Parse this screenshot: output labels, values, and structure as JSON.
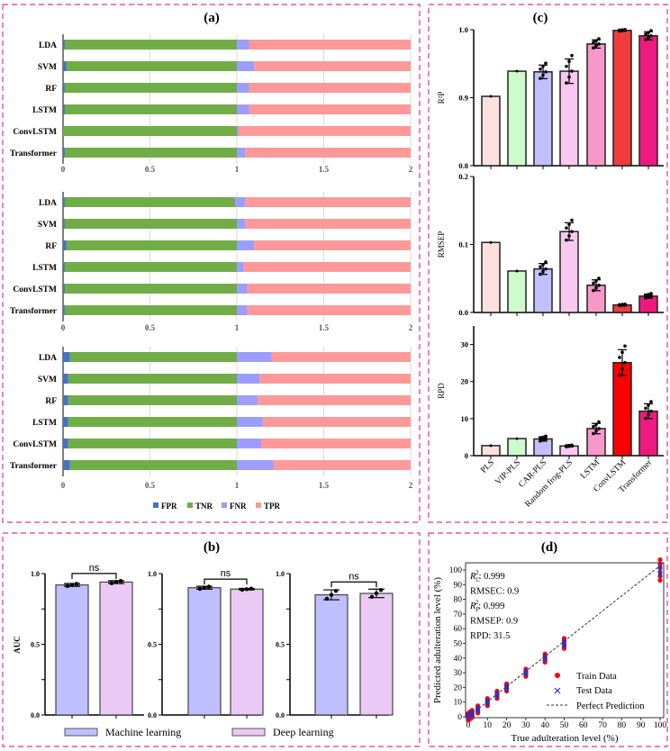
{
  "panels": {
    "a": "(a)",
    "b": "(b)",
    "c": "(c)",
    "d": "(d)"
  },
  "colors": {
    "border": "#e8338a",
    "FPR": "#4472c4",
    "TNR": "#70ad47",
    "FNR": "#9d9dff",
    "TPR": "#ff9999"
  },
  "chart_data": [
    {
      "id": "a",
      "type": "bar",
      "orientation": "horizontal",
      "stacked": true,
      "categories": [
        "LDA",
        "SVM",
        "RF",
        "LSTM",
        "ConvLSTM",
        "Transformer"
      ],
      "xlim": [
        0,
        2
      ],
      "xticks": [
        "0",
        "0.5",
        "1",
        "1.5",
        "2"
      ],
      "grid": true,
      "legend": "bottom",
      "series_names": [
        "FPR",
        "TNR",
        "FNR",
        "TPR"
      ],
      "subplots": [
        {
          "series": [
            {
              "name": "FPR",
              "values": [
                0.01,
                0.02,
                0.01,
                0.01,
                0.0,
                0.01
              ]
            },
            {
              "name": "TNR",
              "values": [
                0.99,
                0.98,
                0.99,
                0.99,
                1.0,
                0.99
              ]
            },
            {
              "name": "FNR",
              "values": [
                0.07,
                0.1,
                0.07,
                0.07,
                0.01,
                0.05
              ]
            },
            {
              "name": "TPR",
              "values": [
                0.93,
                0.9,
                0.93,
                0.93,
                0.99,
                0.95
              ]
            }
          ]
        },
        {
          "series": [
            {
              "name": "FPR",
              "values": [
                0.01,
                0.01,
                0.02,
                0.01,
                0.01,
                0.01
              ]
            },
            {
              "name": "TNR",
              "values": [
                0.98,
                0.99,
                0.98,
                0.99,
                0.99,
                0.99
              ]
            },
            {
              "name": "FNR",
              "values": [
                0.06,
                0.05,
                0.1,
                0.04,
                0.06,
                0.06
              ]
            },
            {
              "name": "TPR",
              "values": [
                0.95,
                0.95,
                0.9,
                0.96,
                0.94,
                0.94
              ]
            }
          ]
        },
        {
          "series": [
            {
              "name": "FPR",
              "values": [
                0.04,
                0.03,
                0.03,
                0.03,
                0.03,
                0.04
              ]
            },
            {
              "name": "TNR",
              "values": [
                0.96,
                0.97,
                0.97,
                0.97,
                0.97,
                0.96
              ]
            },
            {
              "name": "FNR",
              "values": [
                0.2,
                0.13,
                0.12,
                0.15,
                0.14,
                0.21
              ]
            },
            {
              "name": "TPR",
              "values": [
                0.8,
                0.87,
                0.88,
                0.85,
                0.86,
                0.79
              ]
            }
          ]
        }
      ]
    },
    {
      "id": "b",
      "type": "bar",
      "ylabel": "AUC",
      "ylim": [
        0,
        1
      ],
      "yticks": [
        "0.0",
        "0.5",
        "1.0"
      ],
      "legend": "bottom",
      "series_names": [
        "Machine learning",
        "Deep learning"
      ],
      "series_colors": [
        "#bfbfff",
        "#ecc8f4"
      ],
      "annotation": "ns",
      "subplots": [
        {
          "values": [
            0.92,
            0.94
          ],
          "errors": [
            0.01,
            0.01
          ]
        },
        {
          "values": [
            0.9,
            0.89
          ],
          "errors": [
            0.01,
            0.005
          ]
        },
        {
          "values": [
            0.85,
            0.86
          ],
          "errors": [
            0.035,
            0.03
          ]
        }
      ]
    },
    {
      "id": "c",
      "type": "bar",
      "categories": [
        "PLS",
        "VIP-PLS",
        "CAR-PLS",
        "Random frog-PLS",
        "LSTM",
        "ConvLSTM",
        "Transformer"
      ],
      "subplots": [
        {
          "ylabel": "R²P",
          "ylim": [
            0.8,
            1.0
          ],
          "yticks": [
            "0.8",
            "0.9",
            "1.0"
          ],
          "values": [
            0.902,
            0.939,
            0.938,
            0.939,
            0.979,
            0.999,
            0.991
          ],
          "errors": [
            0,
            0,
            0.01,
            0.018,
            0.006,
            0.001,
            0.006
          ],
          "colors": [
            "#fde0e0",
            "#ccfccc",
            "#c0c0ff",
            "#f8c8f0",
            "#f799c8",
            "#f23c3c",
            "#ef1a80"
          ]
        },
        {
          "ylabel": "RMSEP",
          "ylim": [
            0,
            0.2
          ],
          "yticks": [
            "0.0",
            "0.1",
            "0.2"
          ],
          "values": [
            0.103,
            0.061,
            0.064,
            0.119,
            0.04,
            0.011,
            0.024
          ],
          "errors": [
            0,
            0,
            0.008,
            0.013,
            0.008,
            0.001,
            0.003
          ],
          "colors": [
            "#fde0e0",
            "#ccfccc",
            "#c0c0ff",
            "#f8c8f0",
            "#f799c8",
            "#f23c3c",
            "#ef1a80"
          ]
        },
        {
          "ylabel": "RPD",
          "ylim": [
            0,
            35
          ],
          "yticks": [
            "0",
            "10",
            "20",
            "30"
          ],
          "values": [
            2.7,
            4.6,
            4.5,
            2.6,
            7.3,
            25.1,
            12.0
          ],
          "errors": [
            0,
            0,
            0.6,
            0.2,
            1.4,
            3.5,
            2.0
          ],
          "colors": [
            "#fde0e0",
            "#ccfccc",
            "#c0c0ff",
            "#f8c8f0",
            "#f799c8",
            "#ff0000",
            "#ef1a80"
          ]
        }
      ]
    },
    {
      "id": "d",
      "type": "scatter",
      "xlabel": "True adulteration level (%)",
      "ylabel": "Predicted adulteration level (%)",
      "xlim": [
        0,
        100
      ],
      "ylim": [
        0,
        100
      ],
      "ticks": [
        "0",
        "10",
        "20",
        "30",
        "40",
        "50",
        "60",
        "70",
        "80",
        "90",
        "100"
      ],
      "levels": [
        0,
        1,
        2,
        5,
        10,
        15,
        20,
        30,
        40,
        50,
        100
      ],
      "legend": "bottom-right",
      "legend_entries": [
        "Train Data",
        "Test Data",
        "Perfect Prediction"
      ],
      "series_colors": [
        "#ff0000",
        "#3030c0",
        "#333333"
      ],
      "metrics": [
        {
          "label": "R",
          "sub": "C",
          "sup": "2",
          "value": ": 0.999"
        },
        {
          "label": "RMSEC: 0.9"
        },
        {
          "label": "R",
          "sub": "P",
          "sup": "2",
          "value": ": 0.999"
        },
        {
          "label": "RMSEP: 0.9"
        },
        {
          "label": "RPD: 31.5"
        }
      ]
    }
  ]
}
